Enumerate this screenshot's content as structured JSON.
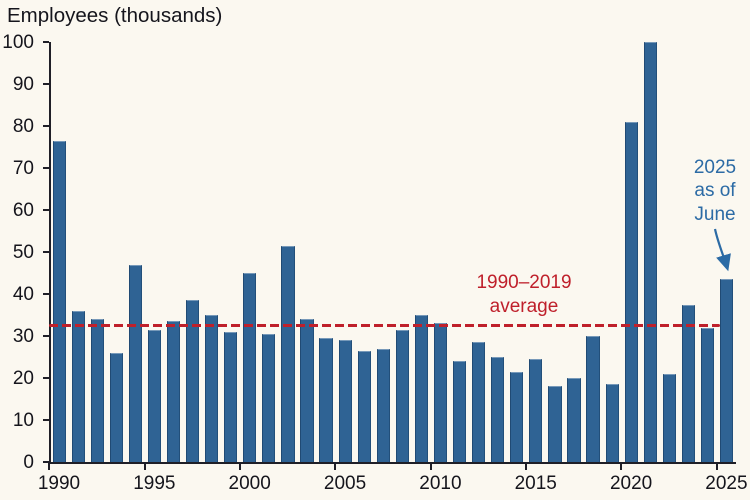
{
  "chart_data": {
    "type": "bar",
    "title": "Employees (thousands)",
    "x": [
      1990,
      1991,
      1992,
      1993,
      1994,
      1995,
      1996,
      1997,
      1998,
      1999,
      2000,
      2001,
      2002,
      2003,
      2004,
      2005,
      2006,
      2007,
      2008,
      2009,
      2010,
      2011,
      2012,
      2013,
      2014,
      2015,
      2016,
      2017,
      2018,
      2019,
      2020,
      2021,
      2022,
      2023,
      2024,
      2025
    ],
    "series": [
      {
        "name": "Employees (thousands)",
        "values": [
          76.5,
          36,
          34,
          26,
          47,
          31.5,
          33.5,
          38.5,
          35,
          31,
          45,
          30.5,
          51.5,
          34,
          29.5,
          29,
          26.5,
          27,
          31.5,
          35,
          33,
          24,
          28.5,
          25,
          21.5,
          24.5,
          18,
          20,
          30,
          18.5,
          81,
          100,
          21,
          37.5,
          32,
          43.5
        ]
      }
    ],
    "xlabel": "",
    "ylabel": "Employees (thousands)",
    "ylim": [
      0,
      100
    ],
    "yticks": [
      0,
      10,
      20,
      30,
      40,
      50,
      60,
      70,
      80,
      90,
      100
    ],
    "xticks": [
      1990,
      1995,
      2000,
      2005,
      2010,
      2015,
      2020,
      2025
    ],
    "grid": false,
    "legend": "none",
    "average_line": {
      "value": 32.5,
      "label_lines": [
        "1990–2019",
        "average"
      ],
      "color": "#bf202b",
      "style": "dashed"
    },
    "annotation": {
      "lines": [
        "2025",
        "as of",
        "June"
      ],
      "target_year": 2025,
      "color": "#2c6ba5"
    },
    "colors": {
      "bar": "#2f6394",
      "background": "#fbf8f0",
      "text": "#15151c"
    }
  }
}
